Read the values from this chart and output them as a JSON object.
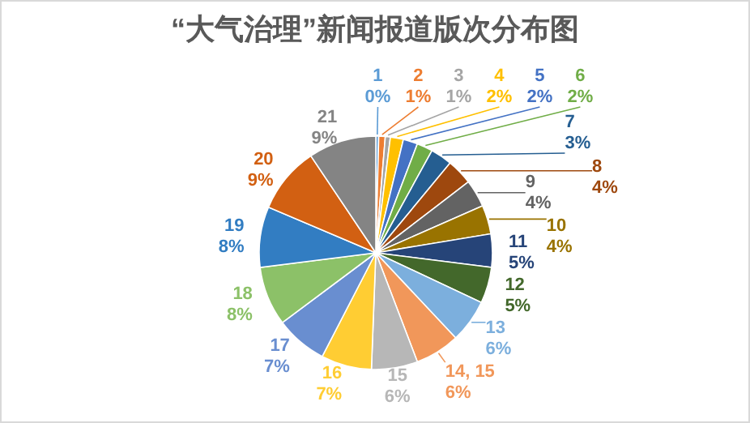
{
  "chart_data": {
    "type": "pie",
    "title": "“大气治理”新闻报道版次分布图",
    "categories": [
      "1",
      "2",
      "3",
      "4",
      "5",
      "6",
      "7",
      "8",
      "9",
      "10",
      "11",
      "12",
      "13",
      "14, 15",
      "15",
      "16",
      "17",
      "18",
      "19",
      "20",
      "21"
    ],
    "values": [
      0.4,
      0.9,
      0.7,
      1.8,
      2,
      2.2,
      3,
      3.6,
      3.8,
      4,
      4.6,
      5,
      6,
      6.2,
      6.4,
      7,
      7.2,
      8.2,
      8.4,
      9.2,
      9.4
    ],
    "value_labels": [
      "0%",
      "1%",
      "1%",
      "2%",
      "2%",
      "2%",
      "3%",
      "4%",
      "4%",
      "4%",
      "5%",
      "5%",
      "6%",
      "6%",
      "6%",
      "7%",
      "7%",
      "8%",
      "8%",
      "9%",
      "9%"
    ],
    "colors": [
      "#5b9bd5",
      "#ed7d31",
      "#a5a5a5",
      "#ffc000",
      "#4472c4",
      "#70ad47",
      "#255e91",
      "#9e480e",
      "#636363",
      "#997300",
      "#264478",
      "#43682b",
      "#7cafdd",
      "#f1975a",
      "#b7b7b7",
      "#ffcd33",
      "#698ed0",
      "#8cc168",
      "#327dc2",
      "#d26012",
      "#848484"
    ]
  }
}
